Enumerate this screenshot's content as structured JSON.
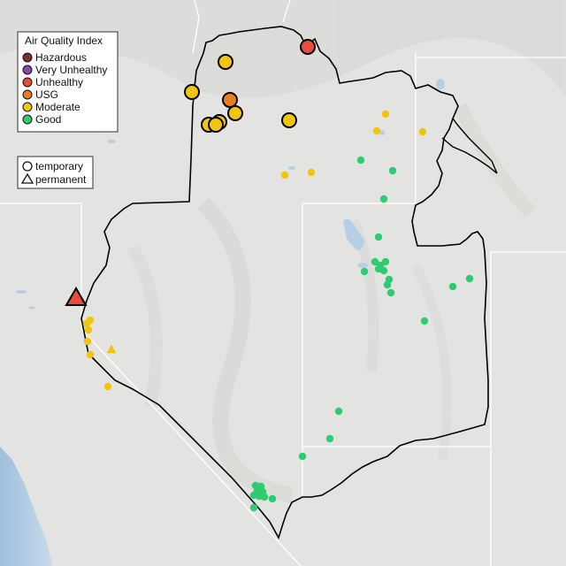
{
  "legend": {
    "title": "Air Quality Index",
    "categories": [
      {
        "label": "Hazardous",
        "color": "#7e2f2f"
      },
      {
        "label": "Very Unhealthy",
        "color": "#8e44ad"
      },
      {
        "label": "Unhealthy",
        "color": "#e74c3c"
      },
      {
        "label": "USG",
        "color": "#e67e22"
      },
      {
        "label": "Moderate",
        "color": "#f1c40f"
      },
      {
        "label": "Good",
        "color": "#2ecc71"
      }
    ]
  },
  "monitor_types": {
    "temporary_label": "temporary",
    "permanent_label": "permanent",
    "temporary_symbol": "circle",
    "permanent_symbol": "triangle"
  },
  "colors": {
    "water": "#b6cfe6",
    "boundary": "#000000",
    "state_lines": "#ffffff"
  }
}
